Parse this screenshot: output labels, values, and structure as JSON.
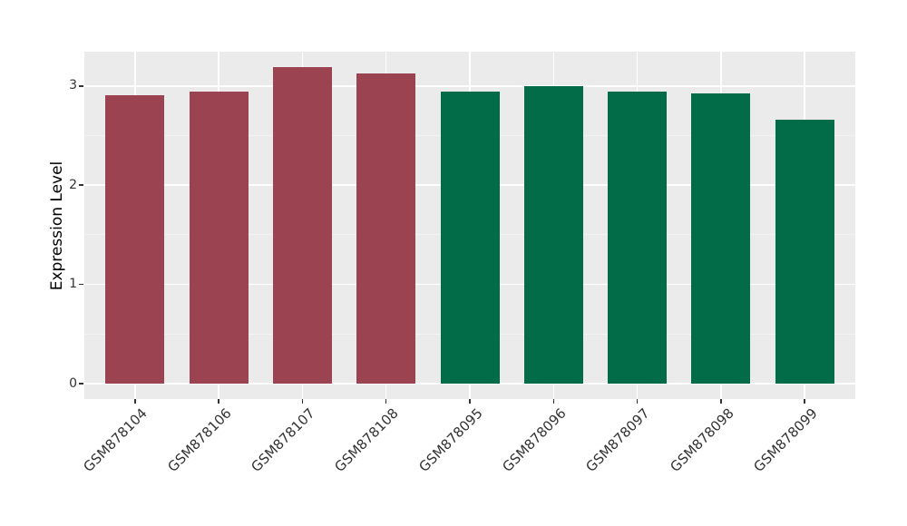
{
  "chart_data": {
    "type": "bar",
    "title": "",
    "xlabel": "",
    "ylabel": "Expression Level",
    "categories": [
      "GSM878104",
      "GSM878106",
      "GSM878107",
      "GSM878108",
      "GSM878095",
      "GSM878096",
      "GSM878097",
      "GSM878098",
      "GSM878099"
    ],
    "values": [
      2.91,
      2.94,
      3.19,
      3.13,
      2.94,
      3.0,
      2.94,
      2.93,
      2.66
    ],
    "bar_colors": [
      "#9B4350",
      "#9B4350",
      "#9B4350",
      "#9B4350",
      "#026B48",
      "#026B48",
      "#026B48",
      "#026B48",
      "#026B48"
    ],
    "groups": [
      {
        "color": "#9B4350",
        "members": [
          "GSM878104",
          "GSM878106",
          "GSM878107",
          "GSM878108"
        ]
      },
      {
        "color": "#026B48",
        "members": [
          "GSM878095",
          "GSM878096",
          "GSM878097",
          "GSM878098",
          "GSM878099"
        ]
      }
    ],
    "yticks": [
      0,
      1,
      2,
      3
    ],
    "yticks_minor": [
      0.5,
      1.5,
      2.5
    ],
    "ylim": [
      -0.17,
      3.35
    ],
    "grid": true,
    "legend": false,
    "panel_bg": "#EBEBEB",
    "grid_major_color": "#FFFFFF",
    "grid_minor_color": "#F5F5F5",
    "tick_color": "#333333"
  }
}
